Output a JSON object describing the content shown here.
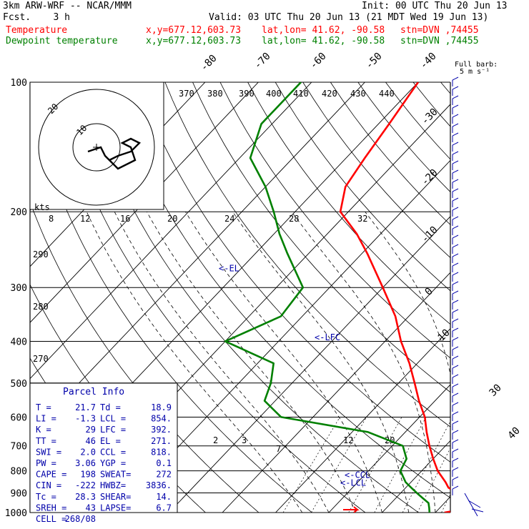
{
  "header": {
    "model": "3km ARW-WRF -- NCAR/MMM",
    "init": "Init: 00 UTC Thu 20 Jun 13",
    "fcst": "Fcst.    3 h",
    "valid": "Valid: 03 UTC Thu 20 Jun 13 (21 MDT Wed 19 Jun 13)",
    "temp_label": "Temperature",
    "dew_label": "Dewpoint temperature",
    "xy": "x,y=677.12,603.73",
    "latlon": "lat,lon= 41.62, -90.58",
    "stn": "stn=DVN ,74455"
  },
  "colors": {
    "temperature": "#ff0000",
    "dewpoint": "#008000",
    "parcel": "#0000aa",
    "grid": "#000000"
  },
  "wind_legend": {
    "line1": "Full barb:",
    "line2": "5 m s⁻¹"
  },
  "hodograph": {
    "units_label": "kts",
    "ring_labels": [
      "20",
      "10"
    ],
    "u_kts": [
      -2,
      1,
      2,
      5,
      9,
      8,
      6,
      8,
      10,
      8,
      5,
      3
    ],
    "v_kts": [
      -1,
      0,
      -2,
      -5,
      -3,
      0,
      1,
      2,
      1,
      -1,
      -2,
      -3
    ]
  },
  "parcel_info": {
    "title": "Parcel Info",
    "rows": [
      [
        "T  =",
        "21.7",
        "Td =",
        "18.9"
      ],
      [
        "LI =",
        "-1.3",
        "LCL =",
        "854."
      ],
      [
        "K  =",
        "29",
        "LFC =",
        "392."
      ],
      [
        "TT =",
        "46",
        "EL =",
        "271."
      ],
      [
        "SWI =",
        "2.0",
        "CCL =",
        "818."
      ],
      [
        "PW =",
        "3.06",
        "YGP =",
        "0.1"
      ],
      [
        "CAPE =",
        "198",
        "SWEAT=",
        "272"
      ],
      [
        "CIN =",
        "-222",
        "HWBZ=",
        "3836."
      ],
      [
        "Tc =",
        "28.3",
        "SHEAR=",
        "14."
      ],
      [
        "SREH =",
        "43",
        "LAPSE=",
        "6.7"
      ],
      [
        "CELL =",
        "268/08",
        "",
        ""
      ]
    ]
  },
  "chart_data": {
    "type": "line",
    "title": "",
    "ylabel": "",
    "y_axis": "pressure_hPa_log",
    "ylim": [
      1000,
      100
    ],
    "pressure_ticks": [
      "100",
      "200",
      "300",
      "400",
      "500",
      "600",
      "700",
      "800",
      "900",
      "1000"
    ],
    "isotherm_labels": [
      "-80",
      "-70",
      "-60",
      "-50",
      "-40",
      "-30",
      "-20",
      "-10",
      "0",
      "10",
      "30",
      "40"
    ],
    "theta_labels_top": [
      "370",
      "380",
      "390",
      "400",
      "410",
      "420",
      "430",
      "440"
    ],
    "theta_labels_left": [
      "290",
      "280",
      "270"
    ],
    "mixing_ratio_labels": [
      "2",
      "3",
      "7",
      "12",
      "20"
    ],
    "mixing_ratio_labels_mid": [
      "8",
      "12",
      "16",
      "20",
      "24",
      "28",
      "32"
    ],
    "markers": [
      {
        "label": "<-EL",
        "p": 271
      },
      {
        "label": "<-LFC",
        "p": 392
      },
      {
        "label": "<-CCL",
        "p": 818
      },
      {
        "label": "<-LCL",
        "p": 854
      }
    ],
    "series": [
      {
        "name": "Temperature",
        "p": [
          1000,
          975,
          950,
          925,
          900,
          875,
          850,
          800,
          750,
          700,
          650,
          600,
          550,
          500,
          450,
          400,
          350,
          300,
          250,
          225,
          200,
          175,
          150,
          125,
          100
        ],
        "t": [
          21.7,
          26.0,
          25.0,
          23.0,
          20.5,
          18.0,
          16.5,
          13.0,
          10.0,
          7.0,
          4.0,
          1.0,
          -3.0,
          -7.0,
          -11.5,
          -17.0,
          -22.5,
          -30.0,
          -39.0,
          -44.5,
          -51.5,
          -55.0,
          -56.5,
          -58.0,
          -60.0
        ]
      },
      {
        "name": "Dewpoint temperature",
        "p": [
          1000,
          975,
          950,
          925,
          900,
          875,
          850,
          800,
          750,
          700,
          650,
          600,
          550,
          500,
          450,
          400,
          350,
          300,
          250,
          225,
          200,
          175,
          150,
          125,
          100
        ],
        "t": [
          18.9,
          18.0,
          17.0,
          15.0,
          13.0,
          11.0,
          9.0,
          6.0,
          5.0,
          2.0,
          -7.0,
          -26.0,
          -32.0,
          -34.0,
          -37.0,
          -50.0,
          -44.0,
          -45.0,
          -54.0,
          -59.0,
          -64.0,
          -70.0,
          -78.0,
          -82.0,
          -82.0
        ]
      }
    ]
  }
}
